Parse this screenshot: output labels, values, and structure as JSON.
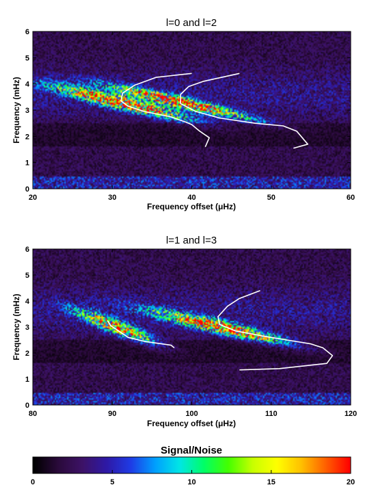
{
  "chart_data": [
    {
      "type": "heatmap",
      "title": "l=0 and l=2",
      "xlabel": "Frequency offset (μHz)",
      "ylabel": "Frequency (mHz)",
      "xlim": [
        20,
        60
      ],
      "ylim": [
        0,
        6
      ],
      "xticks": [
        "20",
        "30",
        "40",
        "50",
        "60"
      ],
      "yticks": [
        "0",
        "1",
        "2",
        "3",
        "4",
        "5",
        "6"
      ],
      "grid": false,
      "ridges": [
        {
          "freq_mhz": 3.3,
          "offset_uhz": 31.0,
          "slope_uhz_per_mhz": -12.0,
          "width_uhz": 3.0,
          "strength": 17
        },
        {
          "freq_mhz": 3.3,
          "offset_uhz": 38.5,
          "slope_uhz_per_mhz": -13.0,
          "width_uhz": 2.6,
          "strength": 17
        }
      ],
      "tracks": [
        {
          "offset_uhz": [
            41.7,
            42.2,
            41.0,
            40.0,
            39.2,
            37.3,
            34.0,
            32.0,
            31.1,
            31.3,
            32.8,
            35.5,
            40.0
          ],
          "freq_mhz": [
            1.6,
            1.95,
            2.2,
            2.45,
            2.55,
            2.75,
            2.95,
            3.15,
            3.35,
            3.65,
            3.95,
            4.25,
            4.4
          ]
        },
        {
          "offset_uhz": [
            52.8,
            54.6,
            53.2,
            51.5,
            48.0,
            43.5,
            40.5,
            38.6,
            38.6,
            39.6,
            41.5,
            46.0
          ],
          "freq_mhz": [
            1.55,
            1.7,
            2.2,
            2.4,
            2.5,
            2.7,
            2.95,
            3.25,
            3.6,
            3.9,
            4.1,
            4.4
          ]
        }
      ]
    },
    {
      "type": "heatmap",
      "title": "l=1 and l=3",
      "xlabel": "Frequency offset (μHz)",
      "ylabel": "Frequency (mHz)",
      "xlim": [
        80,
        120
      ],
      "ylim": [
        0,
        6
      ],
      "xticks": [
        "80",
        "90",
        "100",
        "110",
        "120"
      ],
      "yticks": [
        "0",
        "1",
        "2",
        "3",
        "4",
        "5",
        "6"
      ],
      "grid": false,
      "ridges": [
        {
          "freq_mhz": 3.0,
          "offset_uhz": 90.5,
          "slope_uhz_per_mhz": -7.0,
          "width_uhz": 2.0,
          "strength": 14
        },
        {
          "freq_mhz": 3.0,
          "offset_uhz": 103.5,
          "slope_uhz_per_mhz": -12.0,
          "width_uhz": 3.0,
          "strength": 17
        }
      ],
      "tracks": [
        {
          "offset_uhz": [
            97.8,
            97.4,
            94.0,
            92.0,
            90.8,
            89.8,
            89.4
          ],
          "freq_mhz": [
            2.2,
            2.3,
            2.45,
            2.6,
            2.85,
            3.05,
            3.25
          ]
        },
        {
          "offset_uhz": [
            106.0,
            111.0,
            117.0,
            117.7,
            116.5,
            115.0,
            112.0,
            109.0,
            105.5,
            103.5,
            103.3,
            104.5,
            106.0,
            108.6
          ],
          "freq_mhz": [
            1.35,
            1.4,
            1.6,
            1.9,
            2.2,
            2.35,
            2.5,
            2.65,
            2.85,
            3.1,
            3.4,
            3.8,
            4.1,
            4.4
          ]
        }
      ]
    }
  ],
  "colorbar": {
    "title": "Signal/Noise",
    "min": 0,
    "max": 20,
    "ticks": [
      "0",
      "5",
      "10",
      "15",
      "20"
    ],
    "colors": [
      "#000000",
      "#2a0a3a",
      "#3d1266",
      "#2e19a6",
      "#1f3ce6",
      "#00a0ff",
      "#00e6e6",
      "#00ff66",
      "#44ff00",
      "#c8ff00",
      "#ffff00",
      "#ffc000",
      "#ff6000",
      "#ff0000"
    ]
  },
  "track_color": "#ffffff"
}
